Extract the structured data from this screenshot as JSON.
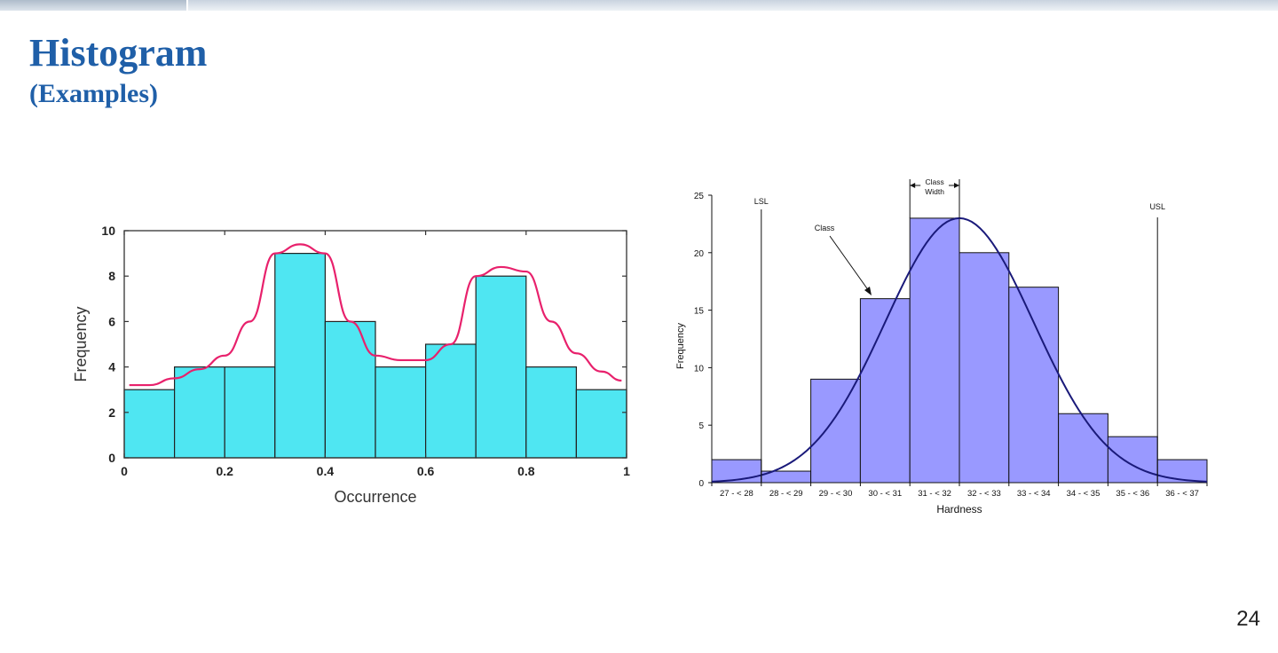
{
  "slide": {
    "title": "Histogram",
    "subtitle": "(Examples)",
    "page_number": "24"
  },
  "colors": {
    "title": "#1f5fa8",
    "chart1_bar": "#4fe6f2",
    "chart1_curve": "#e8216c",
    "chart2_bar": "#9999ff",
    "chart2_curve": "#1a1a7a"
  },
  "chart_data": [
    {
      "type": "bar",
      "xlabel": "Occurrence",
      "ylabel": "Frequency",
      "bin_edges": [
        0,
        0.1,
        0.2,
        0.3,
        0.4,
        0.5,
        0.6,
        0.7,
        0.8,
        0.9,
        1.0
      ],
      "values": [
        3,
        4,
        4,
        9,
        6,
        4,
        5,
        8,
        4,
        3
      ],
      "xlim": [
        0,
        1
      ],
      "ylim": [
        0,
        10
      ],
      "xticks": [
        "0",
        "0.2",
        "0.4",
        "0.6",
        "0.8",
        "1"
      ],
      "xtick_values": [
        0,
        0.2,
        0.4,
        0.6,
        0.8,
        1.0
      ],
      "yticks": [
        "0",
        "2",
        "4",
        "6",
        "8",
        "10"
      ],
      "ytick_values": [
        0,
        2,
        4,
        6,
        8,
        10
      ],
      "overlay_curve": {
        "x": [
          0.01,
          0.05,
          0.1,
          0.15,
          0.2,
          0.25,
          0.3,
          0.35,
          0.4,
          0.45,
          0.5,
          0.55,
          0.6,
          0.65,
          0.7,
          0.75,
          0.8,
          0.85,
          0.9,
          0.95,
          0.99
        ],
        "y": [
          3.2,
          3.2,
          3.5,
          3.9,
          4.5,
          6.0,
          9.0,
          9.4,
          9.0,
          6.0,
          4.5,
          4.3,
          4.3,
          5.0,
          8.0,
          8.4,
          8.2,
          6.0,
          4.6,
          3.8,
          3.4
        ]
      }
    },
    {
      "type": "bar",
      "xlabel": "Hardness",
      "ylabel": "Frequency",
      "categories": [
        "27 - < 28",
        "28 - < 29",
        "29 - < 30",
        "30 - < 31",
        "31 - < 32",
        "32 - < 33",
        "33 - < 34",
        "34 - < 35",
        "35 - < 36",
        "36 - < 37"
      ],
      "values": [
        2,
        1,
        9,
        16,
        23,
        20,
        17,
        6,
        4,
        2
      ],
      "ylim": [
        0,
        25
      ],
      "yticks": [
        "0",
        "5",
        "10",
        "15",
        "20",
        "25"
      ],
      "ytick_values": [
        0,
        5,
        10,
        15,
        20,
        25
      ],
      "lsl": 28,
      "usl": 36,
      "normal_fit": {
        "mean": 32,
        "sd": 1.5,
        "peak": 23
      },
      "annotations": {
        "lsl": "LSL",
        "usl": "USL",
        "class": "Class",
        "class_width_line1": "Class",
        "class_width_line2": "Width"
      }
    }
  ]
}
